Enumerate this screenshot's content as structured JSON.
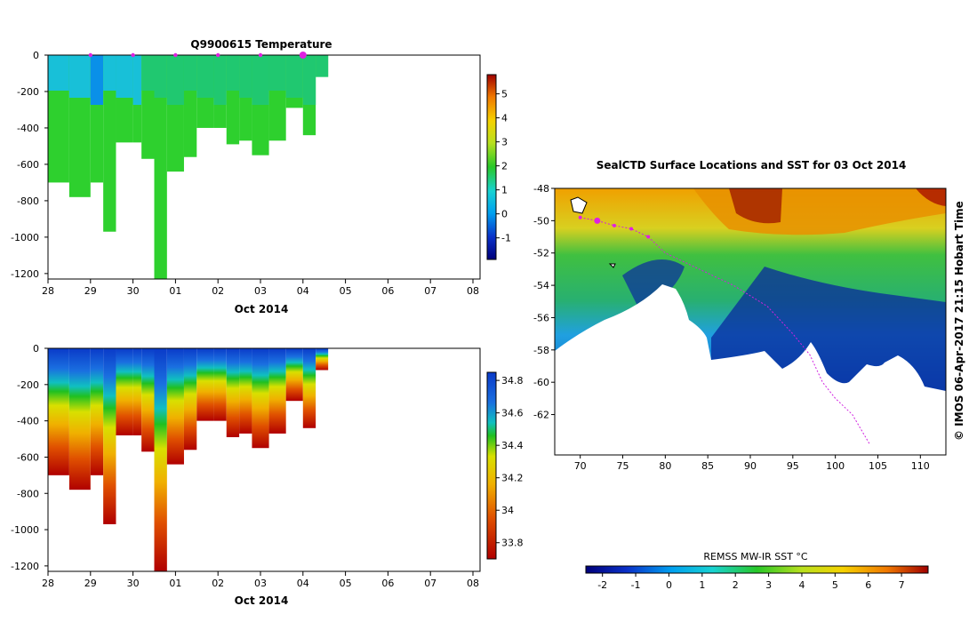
{
  "chart_data": [
    {
      "type": "heatmap",
      "title": "Q9900615  Temperature",
      "xlabel": "Oct 2014",
      "x_tick_labels": [
        "28",
        "29",
        "30",
        "01",
        "02",
        "03",
        "04",
        "05",
        "06",
        "07",
        "08"
      ],
      "y_ticks": [
        0,
        -200,
        -400,
        -600,
        -800,
        -1000,
        -1200
      ],
      "ylim": [
        -1230,
        0
      ],
      "colorbar_ticks": [
        -1,
        0,
        1,
        2,
        3,
        4,
        5
      ],
      "colorbar_range": [
        -1.9,
        5.8
      ],
      "profile_markers": [
        "29",
        "30",
        "01",
        "02",
        "03",
        "04"
      ],
      "profiles": [
        {
          "t": "28.0",
          "max_depth": 700,
          "surface": 0.2,
          "deep": 1.6
        },
        {
          "t": "28.5",
          "max_depth": 780,
          "surface": 0.3,
          "deep": 1.6
        },
        {
          "t": "29.0",
          "max_depth": 700,
          "surface": -0.2,
          "deep": 1.5
        },
        {
          "t": "29.3",
          "max_depth": 970,
          "surface": 0.5,
          "deep": 1.6
        },
        {
          "t": "29.6",
          "max_depth": 480,
          "surface": 0.6,
          "deep": 1.7
        },
        {
          "t": "30.0",
          "max_depth": 480,
          "surface": 0.5,
          "deep": 1.6
        },
        {
          "t": "30.2",
          "max_depth": 570,
          "surface": 0.8,
          "deep": 1.5
        },
        {
          "t": "30.5",
          "max_depth": 1230,
          "surface": 0.8,
          "deep": 1.5
        },
        {
          "t": "30.8",
          "max_depth": 640,
          "surface": 0.9,
          "deep": 1.6
        },
        {
          "t": "01.2",
          "max_depth": 560,
          "surface": 1.0,
          "deep": 1.7
        },
        {
          "t": "01.5",
          "max_depth": 400,
          "surface": 1.1,
          "deep": 1.8
        },
        {
          "t": "01.9",
          "max_depth": 400,
          "surface": 1.2,
          "deep": 1.8
        },
        {
          "t": "02.2",
          "max_depth": 490,
          "surface": 1.2,
          "deep": 1.8
        },
        {
          "t": "02.5",
          "max_depth": 470,
          "surface": 1.4,
          "deep": 1.8
        },
        {
          "t": "02.8",
          "max_depth": 550,
          "surface": 1.5,
          "deep": 1.8
        },
        {
          "t": "03.2",
          "max_depth": 470,
          "surface": 1.5,
          "deep": 1.9
        },
        {
          "t": "03.6",
          "max_depth": 290,
          "surface": 1.6,
          "deep": 1.9
        },
        {
          "t": "04.0",
          "max_depth": 440,
          "surface": 1.7,
          "deep": 1.9
        },
        {
          "t": "04.3",
          "max_depth": 120,
          "surface": 1.8,
          "deep": 1.9
        }
      ]
    },
    {
      "type": "heatmap",
      "title": "",
      "xlabel": "Oct 2014",
      "x_tick_labels": [
        "28",
        "29",
        "30",
        "01",
        "02",
        "03",
        "04",
        "05",
        "06",
        "07",
        "08"
      ],
      "y_ticks": [
        0,
        -200,
        -400,
        -600,
        -800,
        -1000,
        -1200
      ],
      "ylim": [
        -1230,
        0
      ],
      "colorbar_ticks": [
        33.8,
        34,
        34.2,
        34.4,
        34.6,
        34.8
      ],
      "colorbar_range": [
        33.7,
        34.85
      ]
    },
    {
      "type": "heatmap",
      "title": "SealCTD Surface Locations and SST for 03 Oct 2014",
      "x_tick_labels": [
        "70",
        "75",
        "80",
        "85",
        "90",
        "95",
        "100",
        "105",
        "110"
      ],
      "y_tick_labels": [
        "-48",
        "-50",
        "-52",
        "-54",
        "-56",
        "-58",
        "-60",
        "-62"
      ],
      "xlim": [
        67,
        113
      ],
      "ylim": [
        -64.5,
        -48
      ],
      "colorbar_label": "REMSS MW-IR SST °C",
      "colorbar_ticks": [
        -2,
        -1,
        0,
        1,
        2,
        3,
        4,
        5,
        6,
        7
      ],
      "colorbar_range": [
        -2.5,
        7.8
      ],
      "side_label": "© IMOS 06-Apr-2017 21:15 Hobart Time",
      "track": [
        [
          70.0,
          -49.8
        ],
        [
          72.0,
          -50.0
        ],
        [
          74.0,
          -50.3
        ],
        [
          76.0,
          -50.5
        ],
        [
          78.0,
          -51.0
        ],
        [
          80.0,
          -52.0
        ],
        [
          84.0,
          -53.0
        ],
        [
          88.0,
          -54.0
        ],
        [
          92.0,
          -55.3
        ],
        [
          95.0,
          -57.0
        ],
        [
          97.0,
          -58.3
        ],
        [
          98.5,
          -60.0
        ],
        [
          100.0,
          -61.0
        ],
        [
          102.0,
          -62.0
        ],
        [
          104.0,
          -63.8
        ]
      ]
    }
  ]
}
